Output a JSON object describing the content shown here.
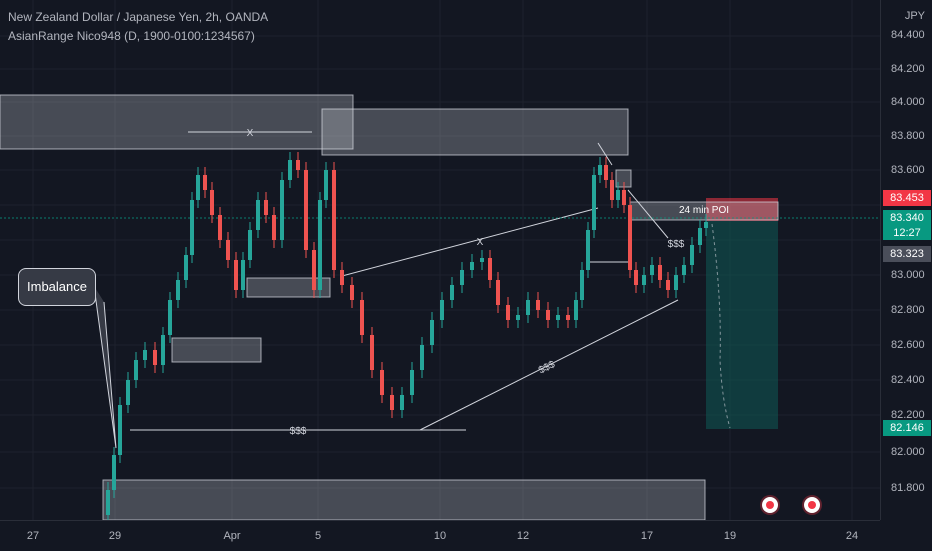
{
  "header": {
    "title": "New Zealand Dollar / Japanese Yen, 2h, OANDA",
    "indicator": "AsianRange Nico948 (D, 1900-0100:1234567)"
  },
  "price_axis": {
    "currency": "JPY",
    "labels": [
      "84.400",
      "84.200",
      "84.000",
      "83.800",
      "83.600",
      "83.000",
      "82.800",
      "82.600",
      "82.400",
      "82.200",
      "82.000",
      "81.800"
    ],
    "tags": {
      "upper": "83.453",
      "current": "83.340",
      "countdown": "12:27",
      "last": "83.323",
      "target": "82.146"
    }
  },
  "time_axis": {
    "labels": [
      "27",
      "29",
      "Apr",
      "5",
      "10",
      "12",
      "17",
      "19",
      "24"
    ]
  },
  "annotations": {
    "imbalance_callout": "Imbalance",
    "poi": "24 min POI",
    "x_top": "X",
    "x_mid": "X",
    "liquidity_low": "$$$",
    "liquidity_trend": "$$$",
    "liquidity_right": "$$$"
  },
  "colors": {
    "background": "#131722",
    "bull": "#26a69a",
    "bear": "#ef5350",
    "zone_fill": "#d1d4dc",
    "target_zone": "#0e5a55",
    "tag_red": "#f23645",
    "tag_green": "#089981"
  },
  "icons": [
    "alert-circle-icon"
  ]
}
